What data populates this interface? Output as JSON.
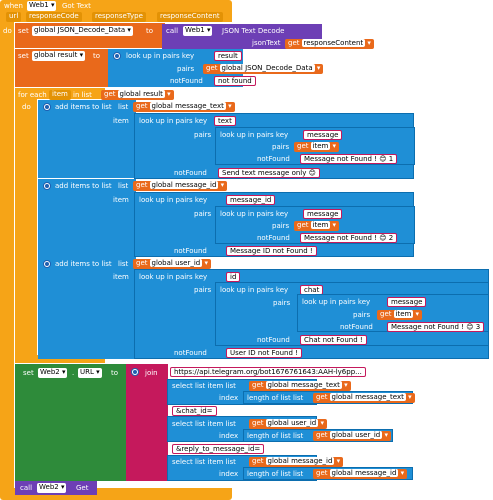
{
  "event": {
    "when": "when",
    "component": "Web1",
    "event": "Got Text",
    "params": [
      "url",
      "responseCode",
      "responseType",
      "responseContent"
    ],
    "do": "do"
  },
  "decode": {
    "set": "set",
    "var": "global JSON_Decode_Data",
    "to": "to",
    "call": "call",
    "component": "Web1",
    "method": "JSON Text Decode",
    "arg_label": "jsonText",
    "get": "get",
    "arg_value": "responseContent"
  },
  "result": {
    "set": "set",
    "var": "global result",
    "to": "to",
    "label": "look up in pairs  key",
    "key": "result",
    "pairs": "pairs",
    "pairs_get": "global JSON_Decode_Data",
    "notfound": "notFound",
    "notfound_val": "not found"
  },
  "foreach": {
    "label": "for each",
    "item": "item",
    "in_list": "in list",
    "get": "global result",
    "do": "do"
  },
  "add1": {
    "label": "add items to list",
    "list": "list",
    "list_get": "global message_text",
    "item": "item",
    "lookup": "look up in pairs  key",
    "key": "text",
    "pairs": "pairs",
    "inner_lookup": "look up in pairs  key",
    "inner_key": "message",
    "inner_pairs": "pairs",
    "inner_get": "item",
    "inner_nf": "notFound",
    "inner_nf_val": "Message not Found ! 😊 1",
    "nf": "notFound",
    "nf_val": "Send text message only 😊"
  },
  "add2": {
    "label": "add items to list",
    "list": "list",
    "list_get": "global message_id",
    "item": "item",
    "lookup": "look up in pairs  key",
    "key": "message_id",
    "pairs": "pairs",
    "inner_lookup": "look up in pairs  key",
    "inner_key": "message",
    "inner_pairs": "pairs",
    "inner_get": "item",
    "inner_nf": "notFound",
    "inner_nf_val": "Message not Found ! 😊 2",
    "nf": "notFound",
    "nf_val": "Message ID not Found !"
  },
  "add3": {
    "label": "add items to list",
    "list": "list",
    "list_get": "global user_id",
    "item": "item",
    "lookup": "look up in pairs  key",
    "key": "id",
    "pairs": "pairs",
    "l2": "look up in pairs  key",
    "l2_key": "chat",
    "l2_pairs": "pairs",
    "l3": "look up in pairs  key",
    "l3_key": "message",
    "l3_pairs": "pairs",
    "l3_get": "item",
    "l3_nf": "notFound",
    "l3_nf_val": "Message not Found ! 😊 3",
    "l2_nf": "notFound",
    "l2_nf_val": "Chat not Found !",
    "nf": "notFound",
    "nf_val": "User ID not Found !"
  },
  "seturl": {
    "set": "set",
    "component": "Web2",
    "prop": "URL",
    "to": "to",
    "join": "join",
    "s1": "https://api.telegram.org/bot1676761643:AAH-ly6pp...",
    "sel": "select list item  list",
    "index": "index",
    "length": "length of list  list",
    "g_text": "global message_text",
    "s2": "&chat_id=",
    "g_user": "global user_id",
    "s3": "&reply_to_message_id=",
    "g_id": "global message_id"
  },
  "callget": {
    "call": "call",
    "component": "Web2",
    "method": "Get"
  }
}
